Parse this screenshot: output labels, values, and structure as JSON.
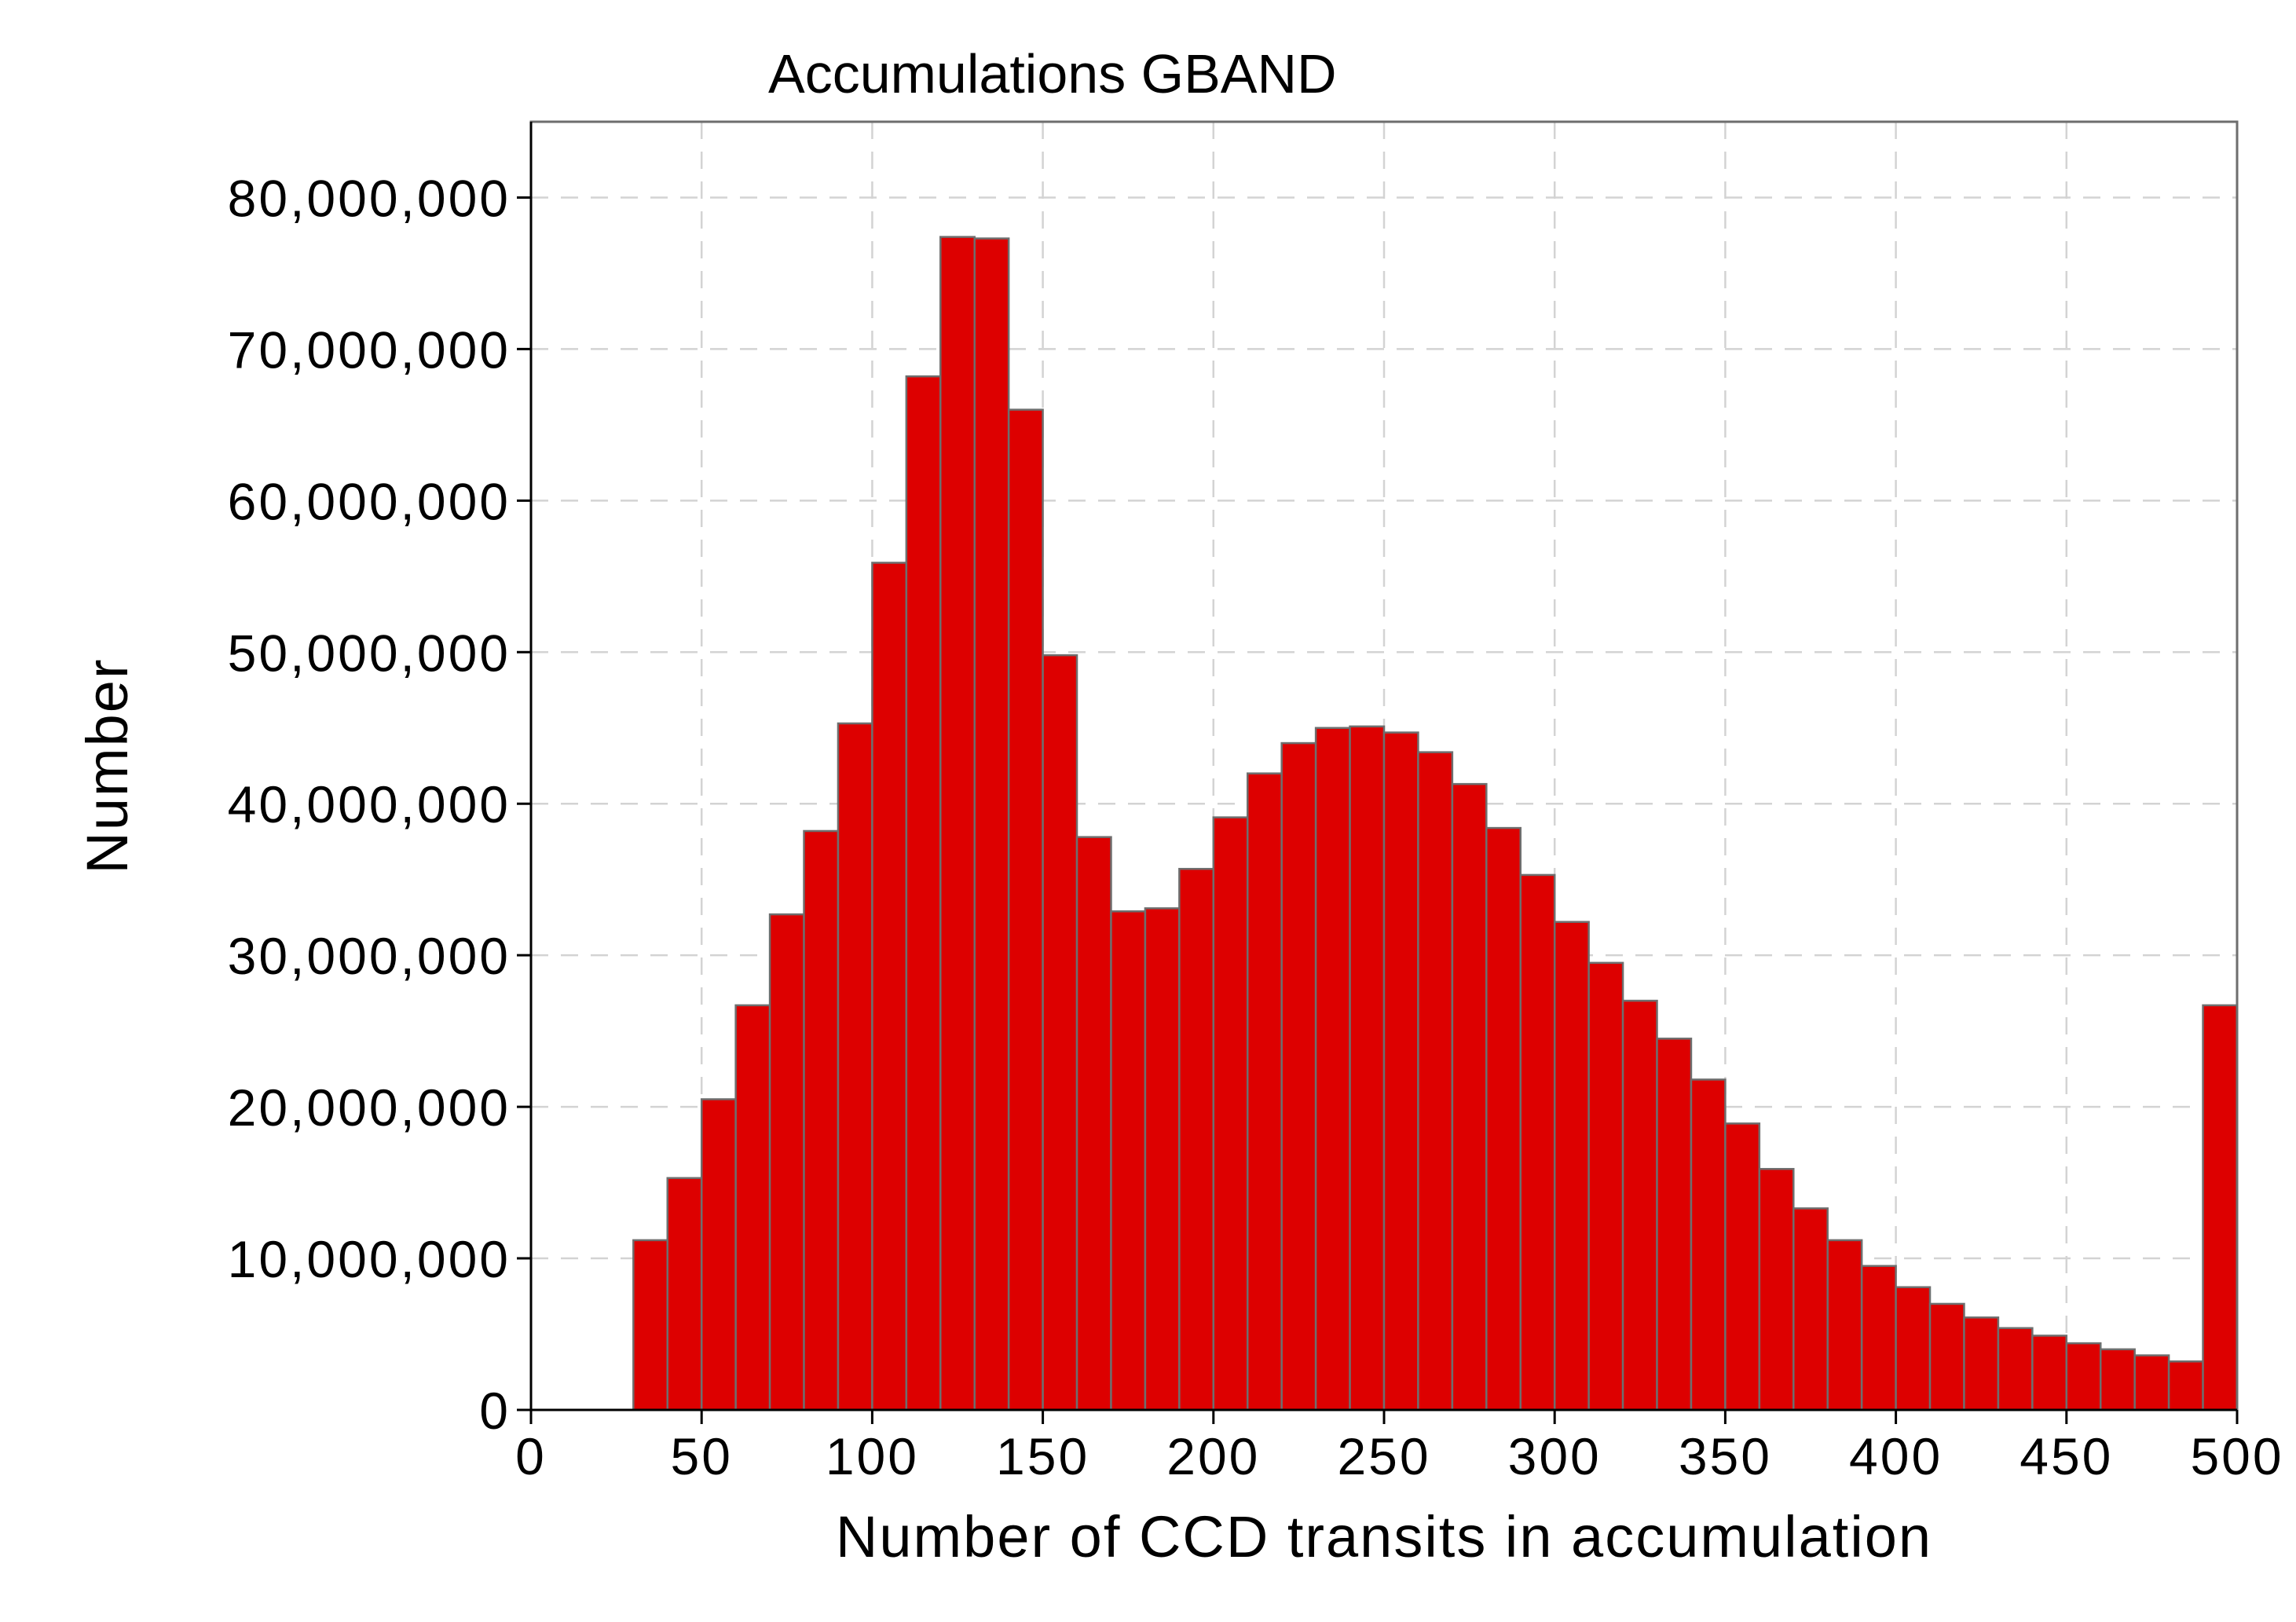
{
  "chart_data": {
    "type": "bar",
    "title": "Accumulations GBAND",
    "xlabel": "Number of CCD transits in accumulation",
    "ylabel": "Number",
    "xlim": [
      0,
      500
    ],
    "ylim": [
      0,
      85000000
    ],
    "x_ticks": [
      0,
      50,
      100,
      150,
      200,
      250,
      300,
      350,
      400,
      450,
      500
    ],
    "y_ticks": [
      0,
      10000000,
      20000000,
      30000000,
      40000000,
      50000000,
      60000000,
      70000000,
      80000000
    ],
    "y_tick_labels": [
      "0",
      "10,000,000",
      "20,000,000",
      "30,000,000",
      "40,000,000",
      "50,000,000",
      "60,000,000",
      "70,000,000",
      "80,000,000"
    ],
    "x_tick_labels": [
      "0",
      "50",
      "100",
      "150",
      "200",
      "250",
      "300",
      "350",
      "400",
      "450",
      "500"
    ],
    "bin_width": 10,
    "bin_starts": [
      30,
      40,
      50,
      60,
      70,
      80,
      90,
      100,
      110,
      120,
      130,
      140,
      150,
      160,
      170,
      180,
      190,
      200,
      210,
      220,
      230,
      240,
      250,
      260,
      270,
      280,
      290,
      300,
      310,
      320,
      330,
      340,
      350,
      360,
      370,
      380,
      390,
      400,
      410,
      420,
      430,
      440,
      450,
      460,
      470,
      480,
      490
    ],
    "values": [
      11200000,
      15300000,
      20500000,
      26700000,
      32700000,
      38200000,
      45300000,
      55900000,
      68200000,
      77400000,
      77300000,
      66000000,
      49800000,
      37800000,
      32900000,
      33100000,
      35700000,
      39100000,
      42000000,
      44000000,
      45000000,
      45100000,
      44700000,
      43400000,
      41300000,
      38400000,
      35300000,
      32200000,
      29500000,
      27000000,
      24500000,
      21800000,
      18900000,
      15900000,
      13300000,
      11200000,
      9500000,
      8100000,
      7000000,
      6100000,
      5400000,
      4900000,
      4400000,
      4000000,
      3600000,
      3200000,
      26700000
    ],
    "grid": true,
    "colors": {
      "bar_fill": "#dd0000",
      "bar_edge": "#6e6e6e",
      "grid": "#d3d3d3",
      "frame": "#6e6e6e"
    }
  }
}
